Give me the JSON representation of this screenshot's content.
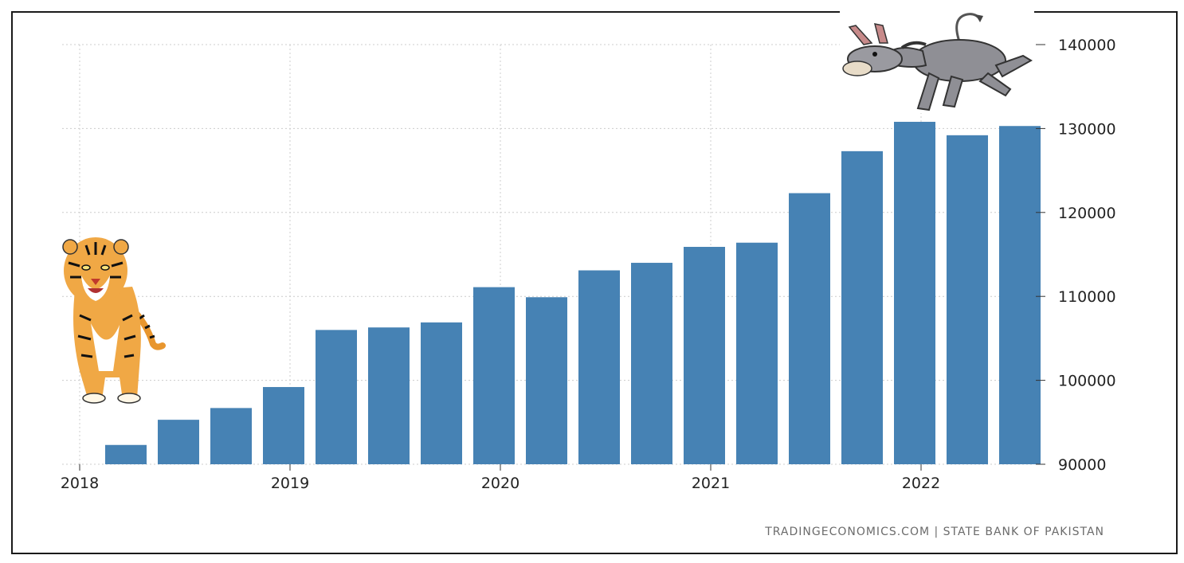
{
  "chart_data": {
    "type": "bar",
    "x": [
      "2018-04",
      "2018-07",
      "2018-10",
      "2019-01",
      "2019-04",
      "2019-07",
      "2019-10",
      "2020-01",
      "2020-04",
      "2020-07",
      "2020-10",
      "2021-01",
      "2021-04",
      "2021-07",
      "2021-10",
      "2022-01",
      "2022-04",
      "2022-07"
    ],
    "values": [
      92300,
      95300,
      96700,
      99200,
      106000,
      106300,
      106900,
      111100,
      109900,
      113100,
      114000,
      115900,
      116400,
      122300,
      127300,
      130800,
      129200,
      130300
    ],
    "x_tick_labels": [
      "2018",
      "2019",
      "2020",
      "2021",
      "2022"
    ],
    "y_tick_labels": [
      "90000",
      "100000",
      "110000",
      "120000",
      "130000",
      "140000"
    ],
    "ylim": [
      90000,
      140000
    ],
    "yaxis_side": "right",
    "grid": true,
    "bar_color": "#4682b4",
    "grid_color": "#cccccc",
    "title": "",
    "xlabel": "",
    "ylabel": ""
  },
  "footer": {
    "source": "TRADINGECONOMICS.COM  |  STATE BANK OF PAKISTAN"
  },
  "decorations": {
    "left_image": "tiger-illustration",
    "right_image": "donkey-illustration"
  }
}
